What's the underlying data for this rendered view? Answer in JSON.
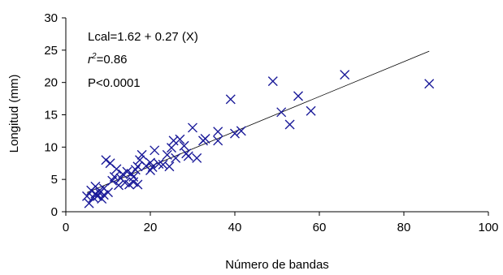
{
  "chart_data": {
    "type": "scatter",
    "xlabel": "Número de bandas",
    "ylabel": "Longitud (mm)",
    "xlim": [
      0,
      100
    ],
    "ylim": [
      0,
      30
    ],
    "xticks": [
      "0",
      "20",
      "40",
      "60",
      "80",
      "100"
    ],
    "yticks": [
      "0",
      "5",
      "10",
      "15",
      "20",
      "25",
      "30"
    ],
    "grid": false,
    "marker": "x",
    "marker_color": "#1a1a99",
    "annotations": {
      "equation": "Lcal=1.62 + 0.27 (X)",
      "r2_label": "r",
      "r2_sup": "2",
      "r2_value": "=0.86",
      "p_value": "P<0.0001"
    },
    "regression": {
      "intercept": 1.62,
      "slope": 0.27,
      "x_range": [
        5,
        86
      ]
    },
    "points": [
      [
        5,
        2.4
      ],
      [
        5.5,
        1.3
      ],
      [
        6,
        3.3
      ],
      [
        6.5,
        2.2
      ],
      [
        7,
        2.8
      ],
      [
        7,
        3.9
      ],
      [
        7.5,
        2.4
      ],
      [
        8,
        2.9
      ],
      [
        8,
        3.3
      ],
      [
        8.5,
        2.0
      ],
      [
        9,
        3.6
      ],
      [
        9,
        2.6
      ],
      [
        9.5,
        8.0
      ],
      [
        10,
        3.0
      ],
      [
        10.5,
        7.5
      ],
      [
        11,
        4.8
      ],
      [
        11.5,
        5.4
      ],
      [
        12,
        6.6
      ],
      [
        12.5,
        4.1
      ],
      [
        13,
        5.2
      ],
      [
        13.5,
        5.8
      ],
      [
        14,
        4.5
      ],
      [
        14.5,
        6.2
      ],
      [
        15,
        4.2
      ],
      [
        15.5,
        5.9
      ],
      [
        16,
        5.4
      ],
      [
        16,
        4.6
      ],
      [
        16.5,
        6.5
      ],
      [
        17,
        7.0
      ],
      [
        17,
        4.2
      ],
      [
        17.5,
        8.0
      ],
      [
        18,
        8.8
      ],
      [
        19,
        7.1
      ],
      [
        20,
        6.4
      ],
      [
        20,
        7.6
      ],
      [
        20.5,
        6.9
      ],
      [
        21,
        9.5
      ],
      [
        22,
        7.4
      ],
      [
        23,
        7.3
      ],
      [
        24,
        8.8
      ],
      [
        24.5,
        7.0
      ],
      [
        25,
        9.9
      ],
      [
        25.5,
        11.0
      ],
      [
        26,
        8.3
      ],
      [
        27,
        11.2
      ],
      [
        28,
        10.2
      ],
      [
        28.5,
        9.0
      ],
      [
        29,
        8.6
      ],
      [
        30,
        13.0
      ],
      [
        31,
        8.3
      ],
      [
        32.5,
        11.0
      ],
      [
        33,
        11.3
      ],
      [
        36,
        11.0
      ],
      [
        36,
        12.4
      ],
      [
        39,
        17.4
      ],
      [
        40,
        12.1
      ],
      [
        41.5,
        12.5
      ],
      [
        49,
        20.2
      ],
      [
        51,
        15.4
      ],
      [
        53,
        13.5
      ],
      [
        55,
        17.9
      ],
      [
        58,
        15.6
      ],
      [
        66,
        21.2
      ],
      [
        86,
        19.8
      ]
    ]
  }
}
